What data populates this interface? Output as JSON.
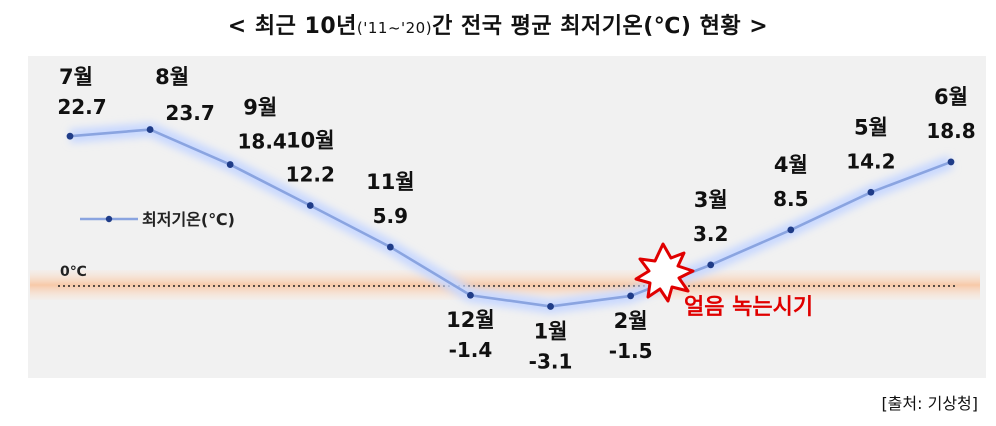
{
  "title": {
    "prefix": "< 최근 10년",
    "period": "('11~'20)",
    "suffix": "간 전국 평균 최저기온(℃) 현황 >"
  },
  "source": "[출처: 기상청]",
  "annotation": "얼음 녹는시기",
  "colors": {
    "line": "#8aa4e0",
    "marker": "#1f3c88",
    "zero_band": "#f7c9a8",
    "plot_bg": "#f1f1f1",
    "melt_text": "#e00000"
  },
  "chart_data": {
    "type": "line",
    "categories": [
      "7월",
      "8월",
      "9월",
      "10월",
      "11월",
      "12월",
      "1월",
      "2월",
      "3월",
      "4월",
      "5월",
      "6월"
    ],
    "series": [
      {
        "name": "최저기온(℃)",
        "values": [
          22.7,
          23.7,
          18.4,
          12.2,
          5.9,
          -1.4,
          -3.1,
          -1.5,
          3.2,
          8.5,
          14.2,
          18.8
        ],
        "value_labels": [
          "22.7",
          "23.7",
          "18.4",
          "12.2",
          "5.9",
          "-1.4",
          "-3.1",
          "-1.5",
          "3.2",
          "8.5",
          "14.2",
          "18.8"
        ]
      }
    ],
    "zero_label": "0℃",
    "legend": "left",
    "grid": false
  }
}
